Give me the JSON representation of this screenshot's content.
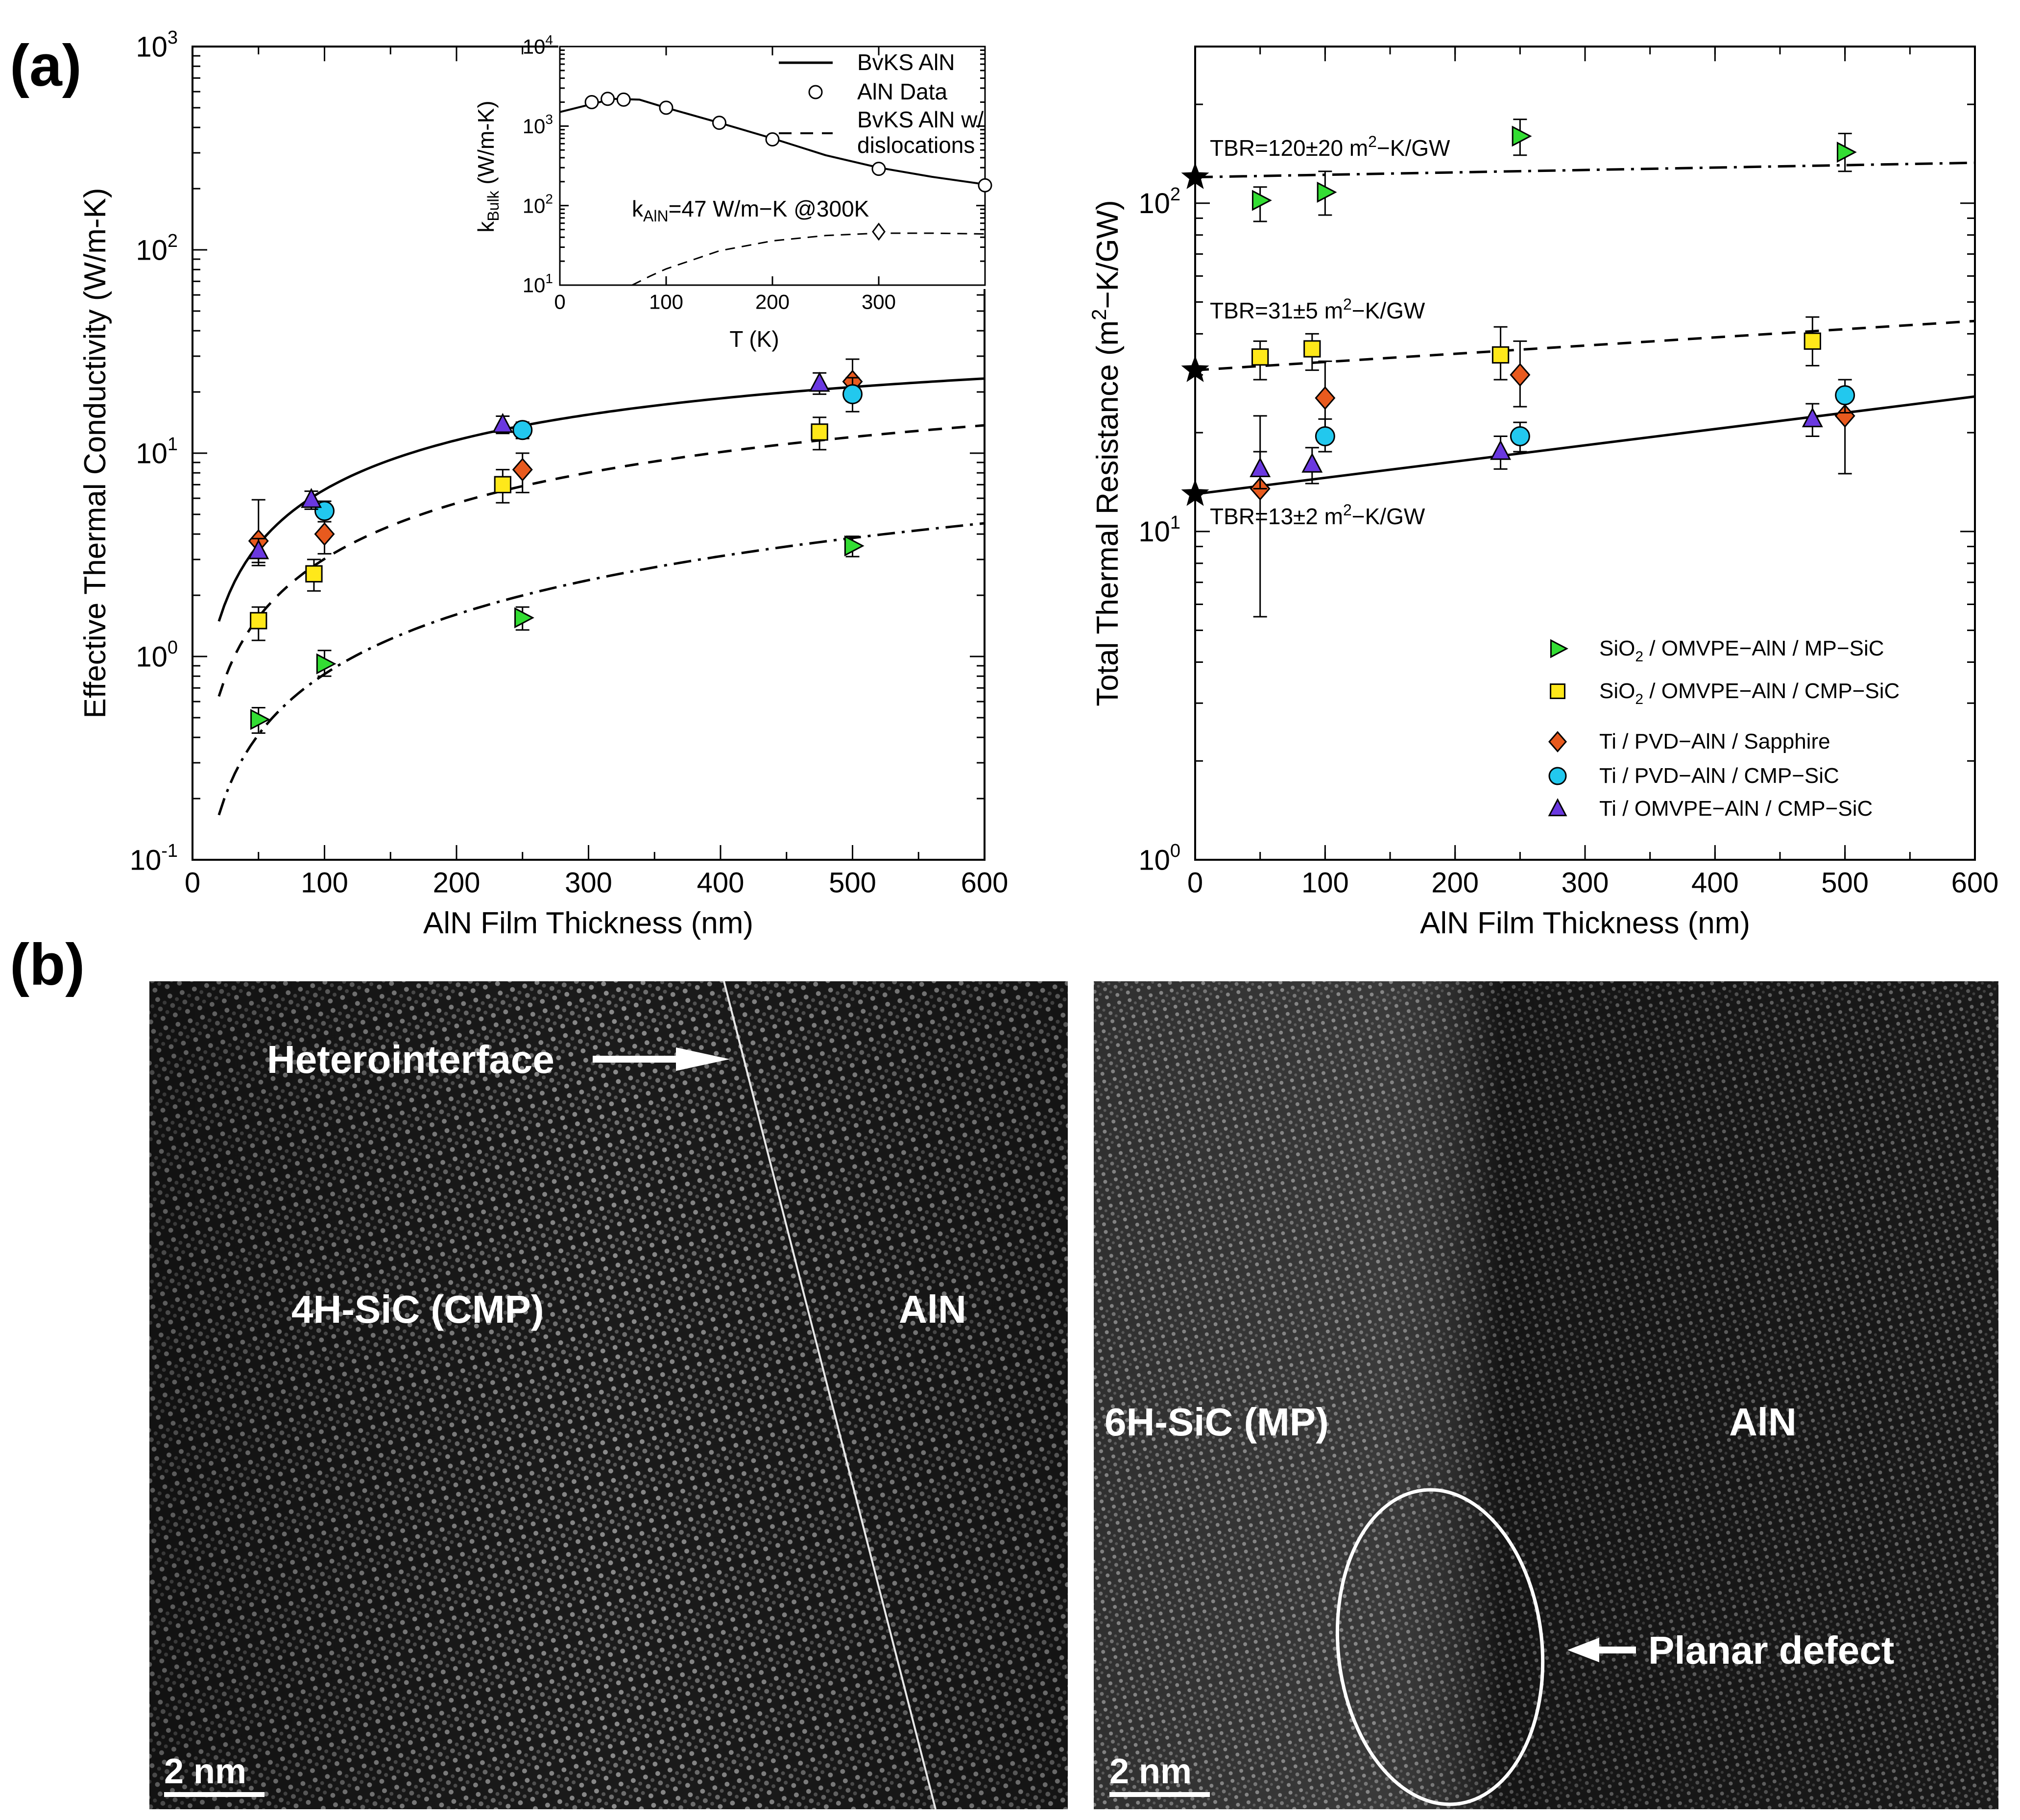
{
  "panels": {
    "a": "(a)",
    "b": "(b)"
  },
  "chart_data": [
    {
      "type": "scatter",
      "id": "left",
      "xlabel": "AlN Film Thickness (nm)",
      "ylabel": "Effective Thermal Conductivity (W/m-K)",
      "xlim": [
        0,
        600
      ],
      "ylim": [
        0.1,
        1000
      ],
      "yscale": "log",
      "xticks": [
        "0",
        "100",
        "200",
        "300",
        "400",
        "500",
        "600"
      ],
      "yticks_mant": [
        "10",
        "10",
        "10",
        "10",
        "10"
      ],
      "yticks_exp": [
        "-1",
        "0",
        "1",
        "2",
        "3"
      ],
      "series": [
        {
          "name": "SiO2 / OMVPE-AlN / MP-SiC",
          "marker": "tri-right",
          "color": "#33dd33",
          "points": [
            [
              50,
              0.49,
              0.42,
              0.56
            ],
            [
              100,
              0.92,
              0.8,
              1.07
            ],
            [
              250,
              1.55,
              1.35,
              1.75
            ],
            [
              500,
              3.5,
              3.1,
              3.9
            ]
          ]
        },
        {
          "name": "SiO2 / OMVPE-AlN / CMP-SiC",
          "marker": "square",
          "color": "#ffe81a",
          "points": [
            [
              50,
              1.5,
              1.2,
              1.75
            ],
            [
              92,
              2.55,
              2.1,
              3.0
            ],
            [
              235,
              7.0,
              5.7,
              8.3
            ],
            [
              475,
              12.7,
              10.4,
              15.0
            ]
          ]
        },
        {
          "name": "Ti / PVD-AlN / Sapphire",
          "marker": "diamond",
          "color": "#e85a1e",
          "points": [
            [
              50,
              3.7,
              2.9,
              5.9
            ],
            [
              100,
              4.0,
              3.2,
              5.0
            ],
            [
              250,
              8.3,
              6.4,
              10.0
            ],
            [
              500,
              22.5,
              18.0,
              29.0
            ]
          ]
        },
        {
          "name": "Ti / PVD-AlN / CMP-SiC",
          "marker": "circle",
          "color": "#22c8ee",
          "points": [
            [
              100,
              5.2,
              4.6,
              5.8
            ],
            [
              250,
              13.0,
              11.8,
              14.2
            ],
            [
              500,
              19.5,
              16.0,
              23.5
            ]
          ]
        },
        {
          "name": "Ti / OMVPE-AlN / CMP-SiC",
          "marker": "tri-up",
          "color": "#6a38e0",
          "points": [
            [
              50,
              3.3,
              2.8,
              3.8
            ],
            [
              90,
              5.9,
              5.3,
              6.5
            ],
            [
              235,
              13.8,
              12.5,
              15.2
            ],
            [
              475,
              22.0,
              19.5,
              24.8
            ]
          ]
        }
      ],
      "curves": [
        {
          "name": "TBR=13 fit",
          "style": "solid",
          "k": 47,
          "tbr": 13
        },
        {
          "name": "TBR=31 fit",
          "style": "dashed",
          "k": 47,
          "tbr": 31
        },
        {
          "name": "TBR=120 fit",
          "style": "dashdot",
          "k": 47,
          "tbr": 120
        }
      ]
    },
    {
      "type": "line",
      "id": "inset",
      "xlabel": "T (K)",
      "ylabel_main": "k",
      "ylabel_sub": "Bulk",
      "ylabel_rest": " (W/m-K)",
      "xlim": [
        0,
        400
      ],
      "ylim": [
        10,
        10000
      ],
      "yscale": "log",
      "xticks": [
        "0",
        "100",
        "200",
        "300"
      ],
      "yticks_mant": [
        "10",
        "10",
        "10",
        "10"
      ],
      "yticks_exp": [
        "1",
        "2",
        "3",
        "4"
      ],
      "aln_data": [
        [
          30,
          2000
        ],
        [
          45,
          2200
        ],
        [
          60,
          2150
        ],
        [
          100,
          1700
        ],
        [
          150,
          1100
        ],
        [
          200,
          680
        ],
        [
          300,
          290
        ],
        [
          400,
          180
        ]
      ],
      "bvks_curve": [
        [
          0,
          1500
        ],
        [
          50,
          2200
        ],
        [
          75,
          2150
        ],
        [
          100,
          1700
        ],
        [
          150,
          1100
        ],
        [
          200,
          700
        ],
        [
          250,
          430
        ],
        [
          300,
          300
        ],
        [
          350,
          230
        ],
        [
          400,
          185
        ]
      ],
      "dislocation_curve": [
        [
          68,
          10
        ],
        [
          85,
          13
        ],
        [
          100,
          16
        ],
        [
          150,
          27
        ],
        [
          200,
          36
        ],
        [
          250,
          42
        ],
        [
          300,
          45
        ],
        [
          350,
          45
        ],
        [
          400,
          44
        ]
      ],
      "point_300K": [
        300,
        47
      ],
      "legend": {
        "solid": "BvKS AlN",
        "circle": "AlN Data",
        "dashed_1": "BvKS AlN w/",
        "dashed_2": "dislocations"
      },
      "note_k": "k",
      "note_sub": "AlN",
      "note_rest": "=47 W/m−K @300K"
    },
    {
      "type": "scatter",
      "id": "right",
      "xlabel": "AlN Film Thickness (nm)",
      "ylabel_pre": "Total Thermal Resistance (m",
      "ylabel_sup": "2",
      "ylabel_post": "−K/GW)",
      "xlim": [
        0,
        600
      ],
      "ylim": [
        1,
        300
      ],
      "yscale": "log",
      "xticks": [
        "0",
        "100",
        "200",
        "300",
        "400",
        "500",
        "600"
      ],
      "yticks_mant": [
        "10",
        "10",
        "10"
      ],
      "yticks_exp": [
        "0",
        "1",
        "2"
      ],
      "series": [
        {
          "name": "SiO2 / OMVPE-AlN / MP-SiC",
          "marker": "tri-right",
          "color": "#33dd33",
          "points": [
            [
              50,
              102,
              88,
              112
            ],
            [
              100,
              108,
              92,
              125
            ],
            [
              250,
              160,
              140,
              180
            ],
            [
              500,
              143,
              125,
              163
            ]
          ]
        },
        {
          "name": "SiO2 / OMVPE-AlN / CMP-SiC",
          "marker": "square",
          "color": "#ffe81a",
          "points": [
            [
              50,
              34,
              29,
              38
            ],
            [
              90,
              36,
              31,
              40
            ],
            [
              235,
              34.5,
              29,
              42
            ],
            [
              475,
              38,
              32,
              45
            ]
          ]
        },
        {
          "name": "Ti / PVD-AlN / Sapphire",
          "marker": "diamond",
          "color": "#e85a1e",
          "points": [
            [
              50,
              13.5,
              5.5,
              22.5
            ],
            [
              100,
              25.5,
              20,
              33
            ],
            [
              250,
              30,
              24,
              38
            ],
            [
              500,
              22.5,
              15,
              26
            ]
          ]
        },
        {
          "name": "Ti / PVD-AlN / CMP-SiC",
          "marker": "circle",
          "color": "#22c8ee",
          "points": [
            [
              100,
              19.5,
              17.5,
              22
            ],
            [
              250,
              19.5,
              17.5,
              21.5
            ],
            [
              500,
              26,
              23,
              29
            ]
          ]
        },
        {
          "name": "Ti / OMVPE-AlN / CMP-SiC",
          "marker": "tri-up",
          "color": "#6a38e0",
          "points": [
            [
              50,
              15.5,
              13.5,
              17.5
            ],
            [
              90,
              16,
              14,
              18
            ],
            [
              235,
              17.5,
              15.5,
              19.5
            ],
            [
              475,
              22,
              19.5,
              24.5
            ]
          ]
        }
      ],
      "lines": [
        {
          "name": "TBR=13 fit",
          "style": "solid",
          "tbr": 13,
          "k": 47
        },
        {
          "name": "TBR=31 fit",
          "style": "dashed",
          "tbr": 31,
          "k": 47
        },
        {
          "name": "TBR=120 fit",
          "style": "dashdot",
          "tbr": 120,
          "k": 47
        }
      ],
      "stars": [
        [
          0,
          13
        ],
        [
          0,
          31
        ],
        [
          0,
          120
        ]
      ],
      "annotations": [
        {
          "pre": "TBR=120±20 m",
          "sup": "2",
          "post": "−K/GW"
        },
        {
          "pre": "TBR=31±5 m",
          "sup": "2",
          "post": "−K/GW"
        },
        {
          "pre": "TBR=13±2 m",
          "sup": "2",
          "post": "−K/GW"
        }
      ],
      "legend": [
        {
          "pre": "SiO",
          "sub": "2",
          "post": " / OMVPE−AlN / MP−SiC"
        },
        {
          "pre": "SiO",
          "sub": "2",
          "post": " / OMVPE−AlN / CMP−SiC"
        },
        {
          "pre": "Ti / PVD−AlN / Sapphire",
          "sub": "",
          "post": ""
        },
        {
          "pre": "Ti / PVD−AlN / CMP−SiC",
          "sub": "",
          "post": ""
        },
        {
          "pre": "Ti / OMVPE−AlN / CMP−SiC",
          "sub": "",
          "post": ""
        }
      ]
    }
  ],
  "tem": {
    "left": {
      "interface": "Heterointerface",
      "substrate": "4H-SiC (CMP)",
      "film": "AlN",
      "scale": "2 nm"
    },
    "right": {
      "substrate": "6H-SiC (MP)",
      "film": "AlN",
      "defect": "Planar defect",
      "scale": "2 nm"
    }
  }
}
